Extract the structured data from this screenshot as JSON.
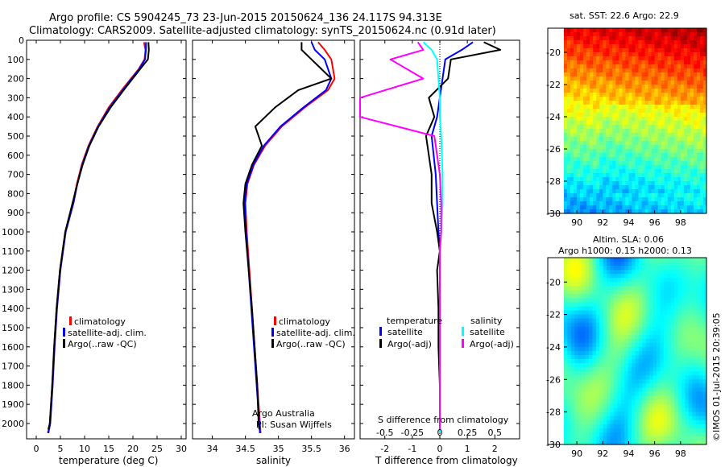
{
  "title_line1": "Argo profile: CS 5904245_73 23-Jun-2015 20150624_136 24.117S 94.313E",
  "title_line2": "Climatology: CARS2009. Satellite-adjusted climatology: synTS_20150624.nc (0.91d later)",
  "colors": {
    "climatology": "#ff0000",
    "satellite": "#0000ff",
    "argo": "#000000",
    "sal_satellite": "#00ffff",
    "sal_argo": "#ff00ff"
  },
  "chart_data": [
    {
      "type": "line",
      "id": "temperature",
      "xlabel": "temperature (deg C)",
      "xlim": [
        -2,
        31
      ],
      "ylim": [
        0,
        2080
      ],
      "xticks": [
        "0",
        "5",
        "10",
        "15",
        "20",
        "25",
        "30"
      ],
      "yticks": [
        "0",
        "100",
        "200",
        "300",
        "400",
        "500",
        "600",
        "700",
        "800",
        "900",
        "1000",
        "1100",
        "1200",
        "1300",
        "1400",
        "1500",
        "1600",
        "1700",
        "1800",
        "1900",
        "2000"
      ],
      "legend": [
        "climatology",
        "satellite-adj. clim.",
        "Argo(..raw -QC)"
      ],
      "series": [
        {
          "name": "climatology",
          "color": "#ff0000",
          "x": [
            22.3,
            22.6,
            22.4,
            21.2,
            18.0,
            15.0,
            12.7,
            10.8,
            9.4,
            8.4,
            7.6,
            6.0,
            4.9,
            4.2,
            3.7,
            3.3,
            2.8,
            2.4
          ],
          "y": [
            10,
            50,
            100,
            150,
            250,
            350,
            450,
            550,
            650,
            750,
            850,
            1000,
            1200,
            1400,
            1600,
            1800,
            2000,
            2050
          ]
        },
        {
          "name": "satellite-adj. clim.",
          "color": "#0000ff",
          "x": [
            22.7,
            22.7,
            22.5,
            21.3,
            18.2,
            15.2,
            12.8,
            10.9,
            9.5,
            8.5,
            7.7,
            6.1,
            5.0,
            4.3,
            3.8,
            3.4,
            2.9,
            2.5
          ],
          "y": [
            10,
            50,
            100,
            150,
            250,
            350,
            450,
            550,
            650,
            750,
            850,
            1000,
            1200,
            1400,
            1600,
            1800,
            2000,
            2050
          ]
        },
        {
          "name": "Argo(..raw -QC)",
          "color": "#000000",
          "x": [
            23.2,
            23.3,
            23.1,
            21.5,
            18.4,
            15.4,
            12.9,
            11.0,
            9.6,
            8.5,
            7.5,
            6.0,
            4.9,
            4.2,
            3.7,
            3.3,
            2.8,
            2.5
          ],
          "y": [
            10,
            50,
            100,
            150,
            250,
            350,
            450,
            550,
            650,
            750,
            850,
            1000,
            1200,
            1400,
            1600,
            1800,
            2000,
            2030
          ]
        }
      ]
    },
    {
      "type": "line",
      "id": "salinity",
      "xlabel": "salinity",
      "xlim": [
        33.7,
        36.15
      ],
      "ylim": [
        0,
        2080
      ],
      "xticks": [
        "34",
        "34.5",
        "35",
        "35.5",
        "36"
      ],
      "legend": [
        "climatology",
        "satellite-adj. clim.",
        "Argo(..raw -QC)"
      ],
      "annotation": [
        "Argo Australia",
        "PI: Susan Wijffels"
      ],
      "series": [
        {
          "name": "climatology",
          "color": "#ff0000",
          "x": [
            35.6,
            35.7,
            35.8,
            35.85,
            35.75,
            35.4,
            35.05,
            34.8,
            34.63,
            34.53,
            34.5,
            34.52,
            34.56,
            34.6,
            34.64,
            34.68,
            34.72,
            34.73
          ],
          "y": [
            10,
            50,
            100,
            200,
            260,
            350,
            450,
            550,
            650,
            750,
            850,
            1000,
            1200,
            1400,
            1600,
            1800,
            2000,
            2050
          ]
        },
        {
          "name": "satellite-adj. clim.",
          "color": "#0000ff",
          "x": [
            35.5,
            35.55,
            35.7,
            35.8,
            35.72,
            35.38,
            35.03,
            34.78,
            34.62,
            34.52,
            34.49,
            34.51,
            34.55,
            34.59,
            34.63,
            34.67,
            34.71,
            34.72
          ],
          "y": [
            10,
            50,
            100,
            200,
            260,
            350,
            450,
            550,
            650,
            750,
            850,
            1000,
            1200,
            1400,
            1600,
            1800,
            2000,
            2050
          ]
        },
        {
          "name": "Argo(..raw -QC)",
          "color": "#000000",
          "x": [
            35.35,
            35.35,
            35.5,
            35.8,
            35.3,
            34.95,
            34.65,
            34.75,
            34.6,
            34.5,
            34.47,
            34.5,
            34.55,
            34.6,
            34.64,
            34.68,
            34.7,
            34.71
          ],
          "y": [
            10,
            50,
            100,
            200,
            260,
            350,
            450,
            550,
            650,
            750,
            850,
            1000,
            1200,
            1400,
            1600,
            1800,
            2000,
            2030
          ]
        }
      ]
    },
    {
      "type": "line",
      "id": "difference",
      "xlabel": "T difference from climatology",
      "xlabel_top": "S difference from climatology",
      "xlim": [
        -2.9,
        2.9
      ],
      "ylim": [
        0,
        2080
      ],
      "xticks": [
        "-2",
        "-1",
        "0",
        "1",
        "2"
      ],
      "xticks_salinity": [
        "-0.5",
        "-0.25",
        "0",
        "0.25",
        "0.5"
      ],
      "legend_headers": [
        "temperature",
        "salinity"
      ],
      "legend_temperature": [
        "satellite",
        "Argo(-adj)"
      ],
      "legend_salinity": [
        "satellite",
        "Argo(-adj)"
      ],
      "series": [
        {
          "name": "temperature satellite",
          "color": "#0000ff",
          "x": [
            1.2,
            0.8,
            0.2,
            0.1,
            0.0,
            -0.1,
            -0.3,
            -0.15,
            -0.1,
            -0.05,
            0.0,
            0.0,
            0.0,
            0.0,
            0.0,
            0.0,
            0.0
          ],
          "y": [
            10,
            50,
            100,
            200,
            300,
            400,
            500,
            700,
            850,
            1000,
            1100,
            1200,
            1400,
            1600,
            1800,
            2000,
            2050
          ]
        },
        {
          "name": "temperature Argo(-adj)",
          "color": "#000000",
          "x": [
            1.6,
            2.2,
            0.4,
            0.3,
            -0.4,
            -0.2,
            -0.5,
            -0.3,
            -0.3,
            -0.1,
            0.0,
            -0.1,
            -0.05,
            -0.05,
            0.0,
            0.0,
            0.0
          ],
          "y": [
            10,
            50,
            100,
            200,
            300,
            400,
            500,
            700,
            850,
            1000,
            1100,
            1200,
            1400,
            1600,
            1800,
            2000,
            2030
          ]
        },
        {
          "name": "salinity satellite",
          "color": "#00ffff",
          "x": [
            -0.6,
            -0.3,
            -0.1,
            -0.05,
            0.0,
            0.0,
            0.05,
            0.1,
            0.1,
            0.05,
            0.0,
            0.0,
            0.0,
            0.0,
            0.0,
            0.0,
            0.0
          ],
          "y": [
            10,
            50,
            100,
            200,
            300,
            400,
            500,
            700,
            850,
            1000,
            1100,
            1200,
            1400,
            1600,
            1800,
            2000,
            2050
          ]
        },
        {
          "name": "salinity Argo(-adj)",
          "color": "#ff00ff",
          "x": [
            -0.8,
            -0.6,
            -1.8,
            -0.6,
            -2.9,
            -2.9,
            -0.2,
            0.0,
            0.05,
            0.05,
            0.0,
            0.0,
            0.0,
            0.0,
            0.0,
            0.0,
            0.0
          ],
          "y": [
            10,
            50,
            100,
            200,
            300,
            400,
            500,
            700,
            850,
            1000,
            1100,
            1200,
            1400,
            1600,
            1800,
            2000,
            2030
          ]
        }
      ]
    },
    {
      "type": "heatmap",
      "id": "sst_map",
      "title": "sat. SST: 22.6 Argo: 22.9",
      "xticks": [
        "90",
        "92",
        "94",
        "96",
        "98"
      ],
      "yticks": [
        "-20",
        "-22",
        "-24",
        "-26",
        "-28",
        "-30"
      ],
      "xlim": [
        89,
        100
      ],
      "ylim": [
        -30,
        -18.5
      ]
    },
    {
      "type": "heatmap",
      "id": "sla_map",
      "title_line1": "Altim. SLA: 0.06",
      "title_line2": "Argo h1000: 0.15 h2000: 0.13",
      "xticks": [
        "90",
        "92",
        "94",
        "96",
        "98"
      ],
      "yticks": [
        "-20",
        "-22",
        "-24",
        "-26",
        "-28",
        "-30"
      ],
      "xlim": [
        89,
        100
      ],
      "ylim": [
        -30,
        -18.5
      ]
    }
  ],
  "footer_stamp": "©IMOS 01-Jul-2015 20:39:05"
}
